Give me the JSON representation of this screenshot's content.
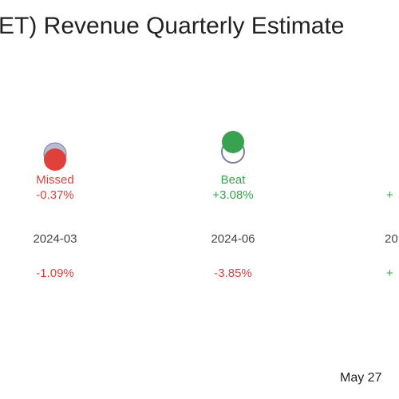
{
  "title": "ET) Revenue Quarterly Estimate",
  "columns": [
    {
      "status": "Missed",
      "surprise": "-0.37%",
      "date": "2024-03",
      "change": "-1.09%"
    },
    {
      "status": "Beat",
      "surprise": "+3.08%",
      "date": "2024-06",
      "change": "-3.85%"
    },
    {
      "surprise": "+",
      "date": "20",
      "change": "+"
    }
  ],
  "footer": "May 27"
}
